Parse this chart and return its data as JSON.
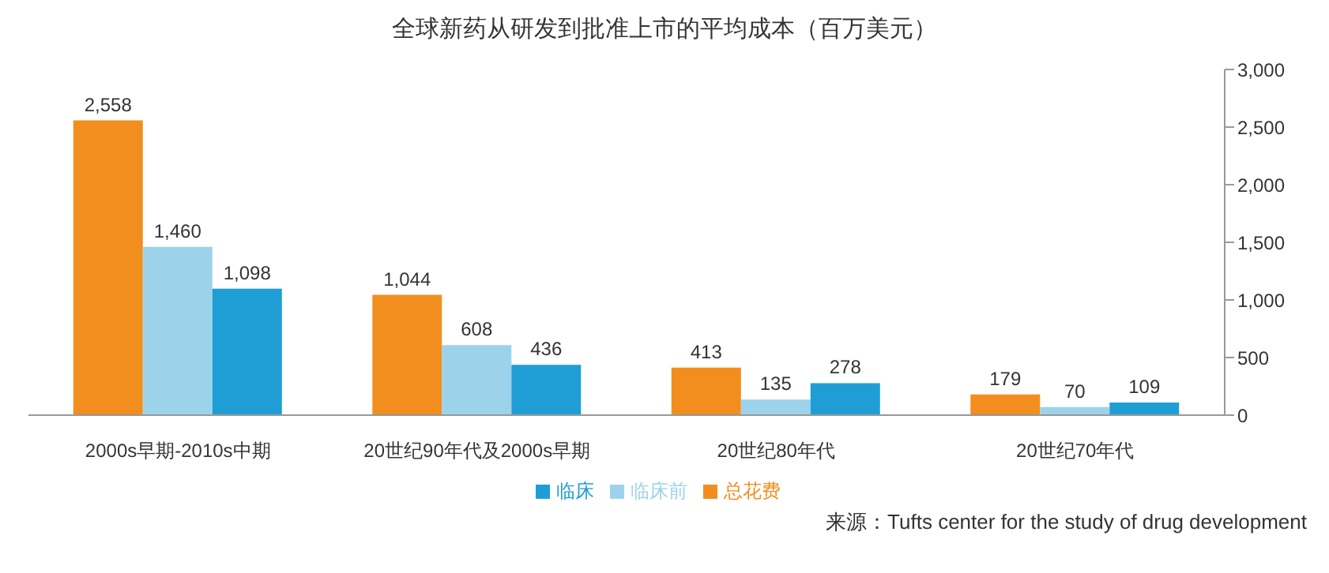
{
  "chart_data": {
    "type": "bar",
    "title": "全球新药从研发到批准上市的平均成本（百万美元）",
    "categories": [
      "2000s早期-2010s中期",
      "20世纪90年代及2000s早期",
      "20世纪80年代",
      "20世纪70年代"
    ],
    "series": [
      {
        "name": "总花费",
        "color": "#f28e1e",
        "values": [
          2558,
          1044,
          413,
          179
        ],
        "value_labels": [
          "2,558",
          "1,044",
          "413",
          "179"
        ]
      },
      {
        "name": "临床前",
        "color": "#9dd3ea",
        "values": [
          1460,
          608,
          135,
          70
        ],
        "value_labels": [
          "1,460",
          "608",
          "135",
          "70"
        ]
      },
      {
        "name": "临床",
        "color": "#1f9ed6",
        "values": [
          1098,
          436,
          278,
          109
        ],
        "value_labels": [
          "1,098",
          "436",
          "278",
          "109"
        ]
      }
    ],
    "ylim": [
      0,
      3000
    ],
    "yticks": [
      0,
      500,
      {
        "value": 1000,
        "label": "1,000"
      },
      {
        "value": 1500,
        "label": "1,500"
      },
      {
        "value": 2000,
        "label": "2,000"
      },
      {
        "value": 2500,
        "label": "2,500"
      },
      {
        "value": 3000,
        "label": "3,000"
      }
    ],
    "grid": false,
    "legend": "bottom",
    "annotations": [
      "来源：Tufts center for the study of drug development"
    ]
  }
}
